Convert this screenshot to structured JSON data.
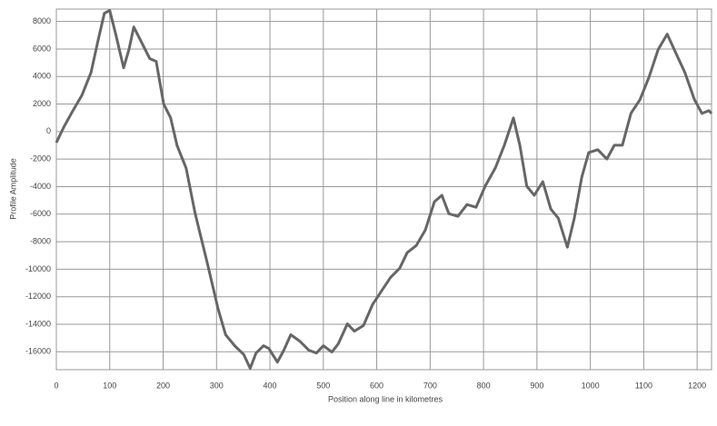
{
  "chart_data": {
    "type": "line",
    "x_label": "Position along line in kilometres",
    "y_label": "Profile Amplitude",
    "x": [
      0,
      14,
      31,
      48,
      65,
      78,
      90,
      100,
      112,
      126,
      136,
      145,
      158,
      175,
      187,
      201,
      214,
      226,
      243,
      260,
      283,
      303,
      317,
      334,
      351,
      363,
      374,
      388,
      398,
      414,
      426,
      439,
      456,
      473,
      487,
      500,
      516,
      528,
      545,
      558,
      575,
      592,
      609,
      626,
      643,
      657,
      674,
      691,
      708,
      722,
      735,
      752,
      769,
      786,
      803,
      822,
      839,
      856,
      868,
      881,
      895,
      911,
      926,
      940,
      957,
      970,
      984,
      997,
      1014,
      1031,
      1045,
      1060,
      1076,
      1093,
      1110,
      1127,
      1144,
      1161,
      1177,
      1195,
      1209,
      1222,
      1227
    ],
    "series": [
      {
        "color": "#666666",
        "values": [
          -800,
          330,
          1520,
          2650,
          4300,
          6600,
          8600,
          8800,
          6950,
          4630,
          5960,
          7600,
          6600,
          5300,
          5100,
          2000,
          1000,
          -1000,
          -2650,
          -5960,
          -9600,
          -12900,
          -14760,
          -15560,
          -16200,
          -17200,
          -16090,
          -15560,
          -15760,
          -16750,
          -15890,
          -14760,
          -15230,
          -15890,
          -16090,
          -15560,
          -16020,
          -15420,
          -13970,
          -14500,
          -14100,
          -12580,
          -11580,
          -10590,
          -9930,
          -8800,
          -8280,
          -7150,
          -5100,
          -4630,
          -5960,
          -6160,
          -5300,
          -5500,
          -3970,
          -2650,
          -990,
          990,
          -990,
          -3970,
          -4630,
          -3640,
          -5630,
          -6290,
          -8400,
          -6290,
          -3310,
          -1520,
          -1320,
          -1990,
          -990,
          -990,
          1320,
          2320,
          3970,
          5960,
          7080,
          5630,
          4300,
          2320,
          1320,
          1520,
          1320
        ]
      }
    ],
    "xlim": [
      0,
      1227
    ],
    "xticks": [
      0,
      100,
      200,
      300,
      400,
      500,
      600,
      700,
      800,
      900,
      1000,
      1100,
      1200
    ],
    "ylim": [
      -17300,
      8900
    ],
    "yticks": [
      8000,
      6000,
      4000,
      2000,
      0,
      -2000,
      -4000,
      -6000,
      -8000,
      -10000,
      -12000,
      -14000,
      -16000
    ],
    "grid": true
  }
}
